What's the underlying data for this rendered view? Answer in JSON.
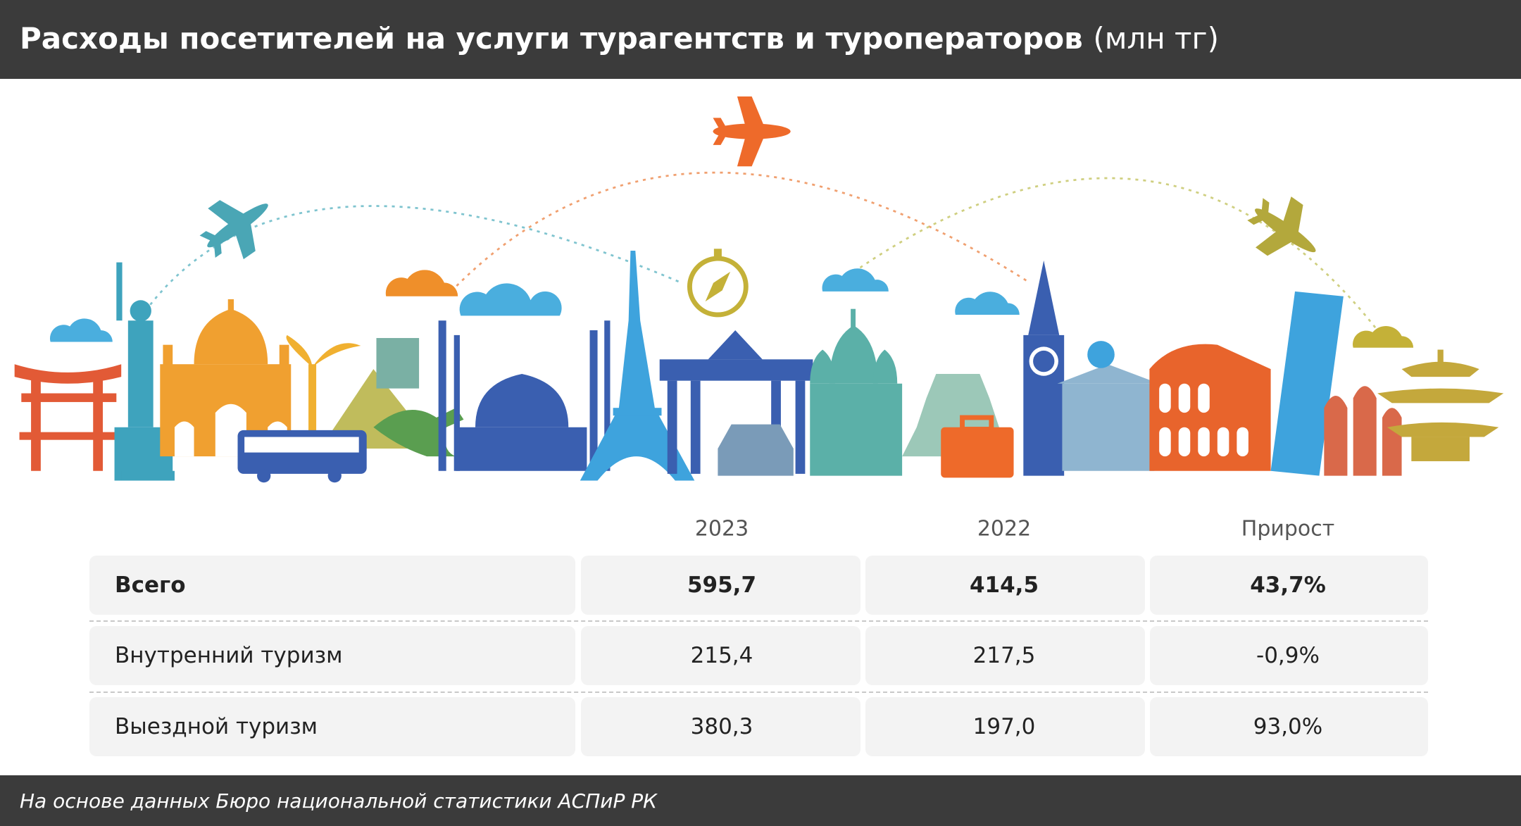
{
  "header": {
    "title": "Расходы посетителей на услуги турагентств и туроператоров",
    "unit": "(млн тг)"
  },
  "table": {
    "columns": [
      "2023",
      "2022",
      "Прирост"
    ],
    "rows": [
      [
        "Всего",
        "595,7",
        "414,5",
        "43,7%"
      ],
      [
        "Внутренний туризм",
        "215,4",
        "217,5",
        "-0,9%"
      ],
      [
        "Выездной туризм",
        "380,3",
        "197,0",
        "93,0%"
      ]
    ]
  },
  "footer": {
    "source": "На основе данных Бюро национальной статистики АСПиР РК"
  }
}
